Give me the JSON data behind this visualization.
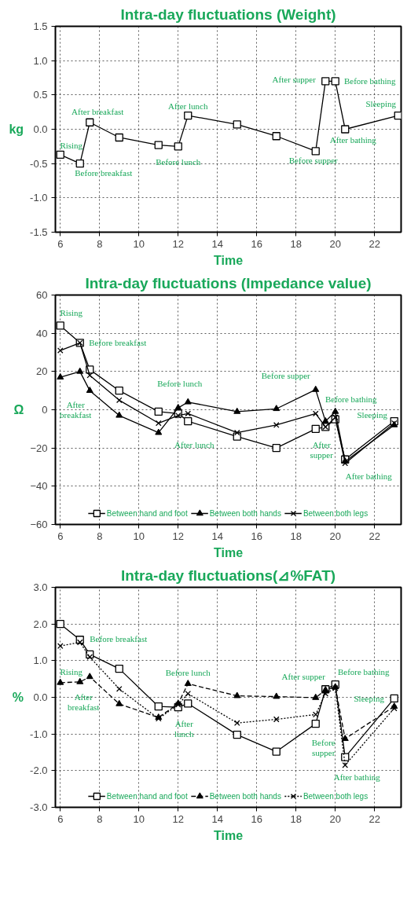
{
  "chart_data": [
    {
      "type": "line",
      "title": "Intra-day fluctuations (Weight)",
      "xlabel": "Time",
      "ylabel": "kg",
      "xlim": [
        5.75,
        23.35
      ],
      "xticks": [
        6,
        8,
        10,
        12,
        14,
        16,
        18,
        20,
        22
      ],
      "ylim": [
        -1.5,
        1.5
      ],
      "yticks": [
        {
          "value": -1.5,
          "label": "-1.5"
        },
        {
          "value": -1.0,
          "label": "-1.0"
        },
        {
          "value": -0.5,
          "label": "-0.5"
        },
        {
          "value": 0,
          "label": "0.0"
        },
        {
          "value": 0.5,
          "label": "0.5"
        },
        {
          "value": 1.0,
          "label": "1.0"
        },
        {
          "value": 1.5,
          "label": "1.5"
        }
      ],
      "grid": true,
      "legend": false,
      "marker": "square",
      "line_style": "solid",
      "series": [
        {
          "color": "#000000",
          "x": [
            6,
            7,
            7.5,
            9,
            11,
            12,
            12.5,
            15,
            17,
            19,
            19.5,
            20,
            20.5,
            23.2
          ],
          "values": [
            -0.37,
            -0.5,
            0.1,
            -0.12,
            -0.23,
            -0.25,
            0.2,
            0.07,
            -0.1,
            -0.32,
            0.7,
            0.7,
            0,
            0.2
          ]
        }
      ],
      "annotations": [
        {
          "text": "Rising",
          "x": 6,
          "y": -0.37
        },
        {
          "text": "Before breakfast",
          "x": 7,
          "y": -0.5
        },
        {
          "text": "After breakfast",
          "x": 7.5,
          "y": 0.1
        },
        {
          "text": "After lunch",
          "x": 12.5,
          "y": 0.2
        },
        {
          "text": "Before lunch",
          "x": 12,
          "y": -0.25
        },
        {
          "text": "After supper",
          "x": 19.5,
          "y": 0.7
        },
        {
          "text": "Before bathing",
          "x": 20,
          "y": 0.7
        },
        {
          "text": "Sleeping",
          "x": 23.2,
          "y": 0.2
        },
        {
          "text": "After bathing",
          "x": 20.5,
          "y": 0
        },
        {
          "text": "Before supper",
          "x": 19,
          "y": -0.32
        }
      ]
    },
    {
      "type": "line",
      "title": "Intra-day fluctuations (Impedance value)",
      "xlabel": "Time",
      "ylabel": "Ω",
      "xlim": [
        5.75,
        23.35
      ],
      "xticks": [
        6,
        8,
        10,
        12,
        14,
        16,
        18,
        20,
        22
      ],
      "ylim": [
        -60,
        60
      ],
      "yticks": [
        -60,
        -40,
        -20,
        0,
        20,
        40,
        60
      ],
      "grid": true,
      "legend": "bottom",
      "line_style": "solid",
      "series": [
        {
          "name": "Between hand and foot",
          "color": "#000000",
          "marker": "square",
          "x": [
            6,
            7,
            7.5,
            9,
            11,
            12,
            12.5,
            15,
            17,
            19,
            19.5,
            20,
            20.5,
            23
          ],
          "values": [
            44,
            35,
            21,
            10,
            -1,
            -2,
            -6,
            -14,
            -20,
            -10,
            -9,
            -5,
            -26,
            -6
          ]
        },
        {
          "name": "Between both hands",
          "color": "#000000",
          "marker": "triangle",
          "x": [
            6,
            7,
            7.5,
            9,
            11,
            12,
            12.5,
            15,
            17,
            19,
            19.5,
            20,
            20.5,
            23
          ],
          "values": [
            17,
            20,
            10,
            -3,
            -12,
            1,
            4,
            -1,
            0.5,
            10.5,
            -6,
            -1,
            -27,
            -8
          ]
        },
        {
          "name": "Between both legs",
          "color": "#000000",
          "marker": "cross",
          "x": [
            6,
            7,
            7.5,
            9,
            11,
            12,
            12.5,
            15,
            17,
            19,
            19.5,
            20,
            20.5,
            23
          ],
          "values": [
            31,
            35,
            18,
            5,
            -7,
            -3,
            -2,
            -12,
            -8,
            -2,
            -9,
            -4,
            -28,
            -7
          ]
        }
      ],
      "annotations": [
        {
          "text": "Rising",
          "x": 6,
          "y": 44
        },
        {
          "text": "Before breakfast",
          "x": 7,
          "y": 35
        },
        {
          "text": "After breakfast",
          "x": 7.5,
          "y": 10
        },
        {
          "text": "Before lunch",
          "x": 12,
          "y": 1
        },
        {
          "text": "After lunch",
          "x": 12.5,
          "y": -6
        },
        {
          "text": "Before supper",
          "x": 19,
          "y": 10.5
        },
        {
          "text": "Before bathing",
          "x": 20,
          "y": -1
        },
        {
          "text": "Sleeping",
          "x": 23,
          "y": -6
        },
        {
          "text": "After supper",
          "x": 19.5,
          "y": -9
        },
        {
          "text": "After bathing",
          "x": 20.5,
          "y": -26
        }
      ]
    },
    {
      "type": "line",
      "title": "Intra-day fluctuations(⊿%FAT)",
      "xlabel": "Time",
      "ylabel": "%",
      "xlim": [
        5.75,
        23.35
      ],
      "xticks": [
        6,
        8,
        10,
        12,
        14,
        16,
        18,
        20,
        22
      ],
      "ylim": [
        -3,
        3
      ],
      "yticks": [
        {
          "value": -3,
          "label": "-3.0"
        },
        {
          "value": -2,
          "label": "-2.0"
        },
        {
          "value": -1,
          "label": "-1.0"
        },
        {
          "value": 0,
          "label": "0.0"
        },
        {
          "value": 1,
          "label": "1.0"
        },
        {
          "value": 2,
          "label": "2.0"
        },
        {
          "value": 3,
          "label": "3.0"
        }
      ],
      "grid": true,
      "legend": "bottom",
      "series": [
        {
          "name": "Between hand and foot",
          "color": "#000000",
          "marker": "square",
          "line_style": "solid",
          "x": [
            6,
            7,
            7.5,
            9,
            11,
            12,
            12.5,
            15,
            17,
            19,
            19.5,
            20,
            20.5,
            23
          ],
          "values": [
            2.0,
            1.57,
            1.17,
            0.78,
            -0.25,
            -0.27,
            -0.17,
            -1.02,
            -1.48,
            -0.72,
            0.22,
            0.35,
            -1.63,
            -0.03
          ]
        },
        {
          "name": "Between both hands",
          "color": "#000000",
          "marker": "triangle",
          "line_style": "dashed",
          "x": [
            6,
            7,
            7.5,
            9,
            11,
            12,
            12.5,
            15,
            17,
            19,
            19.5,
            20,
            20.5,
            23
          ],
          "values": [
            0.4,
            0.42,
            0.56,
            -0.18,
            -0.55,
            -0.17,
            0.37,
            0.04,
            0.02,
            -0.01,
            0.2,
            0.28,
            -1.13,
            -0.25
          ]
        },
        {
          "name": "Between both legs",
          "color": "#000000",
          "marker": "cross",
          "line_style": "dotted",
          "x": [
            6,
            7,
            7.5,
            9,
            11,
            12,
            12.5,
            15,
            17,
            19,
            19.5,
            20,
            20.5,
            23
          ],
          "values": [
            1.4,
            1.5,
            1.1,
            0.23,
            -0.58,
            -0.2,
            0.1,
            -0.7,
            -0.6,
            -0.47,
            0.1,
            0.25,
            -1.85,
            -0.3
          ]
        }
      ],
      "annotations": [
        {
          "text": "Before breakfast",
          "x": 7,
          "y": 1.57
        },
        {
          "text": "Rising",
          "x": 6,
          "y": 0.4
        },
        {
          "text": "After breakfast",
          "x": 7.5,
          "y": 0.56
        },
        {
          "text": "Before lunch",
          "x": 12.5,
          "y": 0.37
        },
        {
          "text": "After lunch",
          "x": 12.5,
          "y": -0.17
        },
        {
          "text": "After supper",
          "x": 19.5,
          "y": 0.22
        },
        {
          "text": "Before bathing",
          "x": 20,
          "y": 0.35
        },
        {
          "text": "Sleeping",
          "x": 23,
          "y": -0.03
        },
        {
          "text": "Before supper",
          "x": 19,
          "y": -0.72
        },
        {
          "text": "After bathing",
          "x": 20.5,
          "y": -1.85
        }
      ]
    }
  ]
}
